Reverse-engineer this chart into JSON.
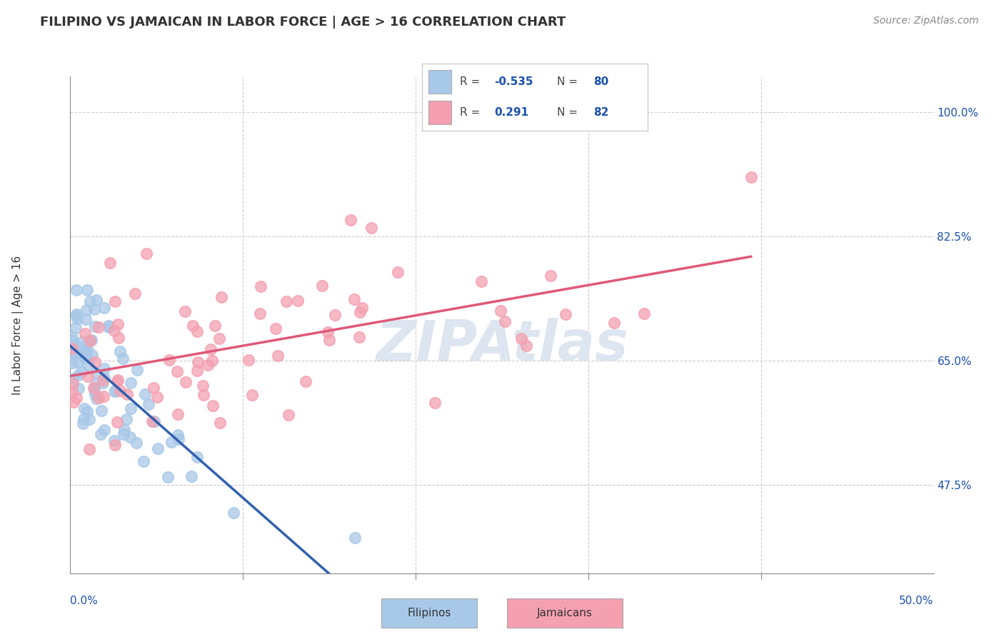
{
  "title": "FILIPINO VS JAMAICAN IN LABOR FORCE | AGE > 16 CORRELATION CHART",
  "source": "Source: ZipAtlas.com",
  "ylabel": "In Labor Force | Age > 16",
  "xlim": [
    0.0,
    0.5
  ],
  "ylim": [
    0.35,
    1.05
  ],
  "xticks": [
    0.0,
    0.1,
    0.2,
    0.3,
    0.4,
    0.5
  ],
  "xticklabels_edge": {
    "0": "0.0%",
    "5": "50.0%"
  },
  "yticks_right": [
    0.475,
    0.65,
    0.825,
    1.0
  ],
  "yticklabels_right": [
    "47.5%",
    "65.0%",
    "82.5%",
    "100.0%"
  ],
  "filipino_R": -0.535,
  "filipino_N": 80,
  "jamaican_R": 0.291,
  "jamaican_N": 82,
  "filipino_color": "#a8c8e8",
  "jamaican_color": "#f4a0b0",
  "filipino_line_color": "#3060b0",
  "jamaican_line_color": "#e05878",
  "dash_color": "#a0b8d8",
  "background_color": "#ffffff",
  "grid_color": "#cccccc",
  "watermark_color": "#dde5f0",
  "title_color": "#333333",
  "legend_R_color": "#1a50b0",
  "legend_label_color": "#444444",
  "seed": 77
}
